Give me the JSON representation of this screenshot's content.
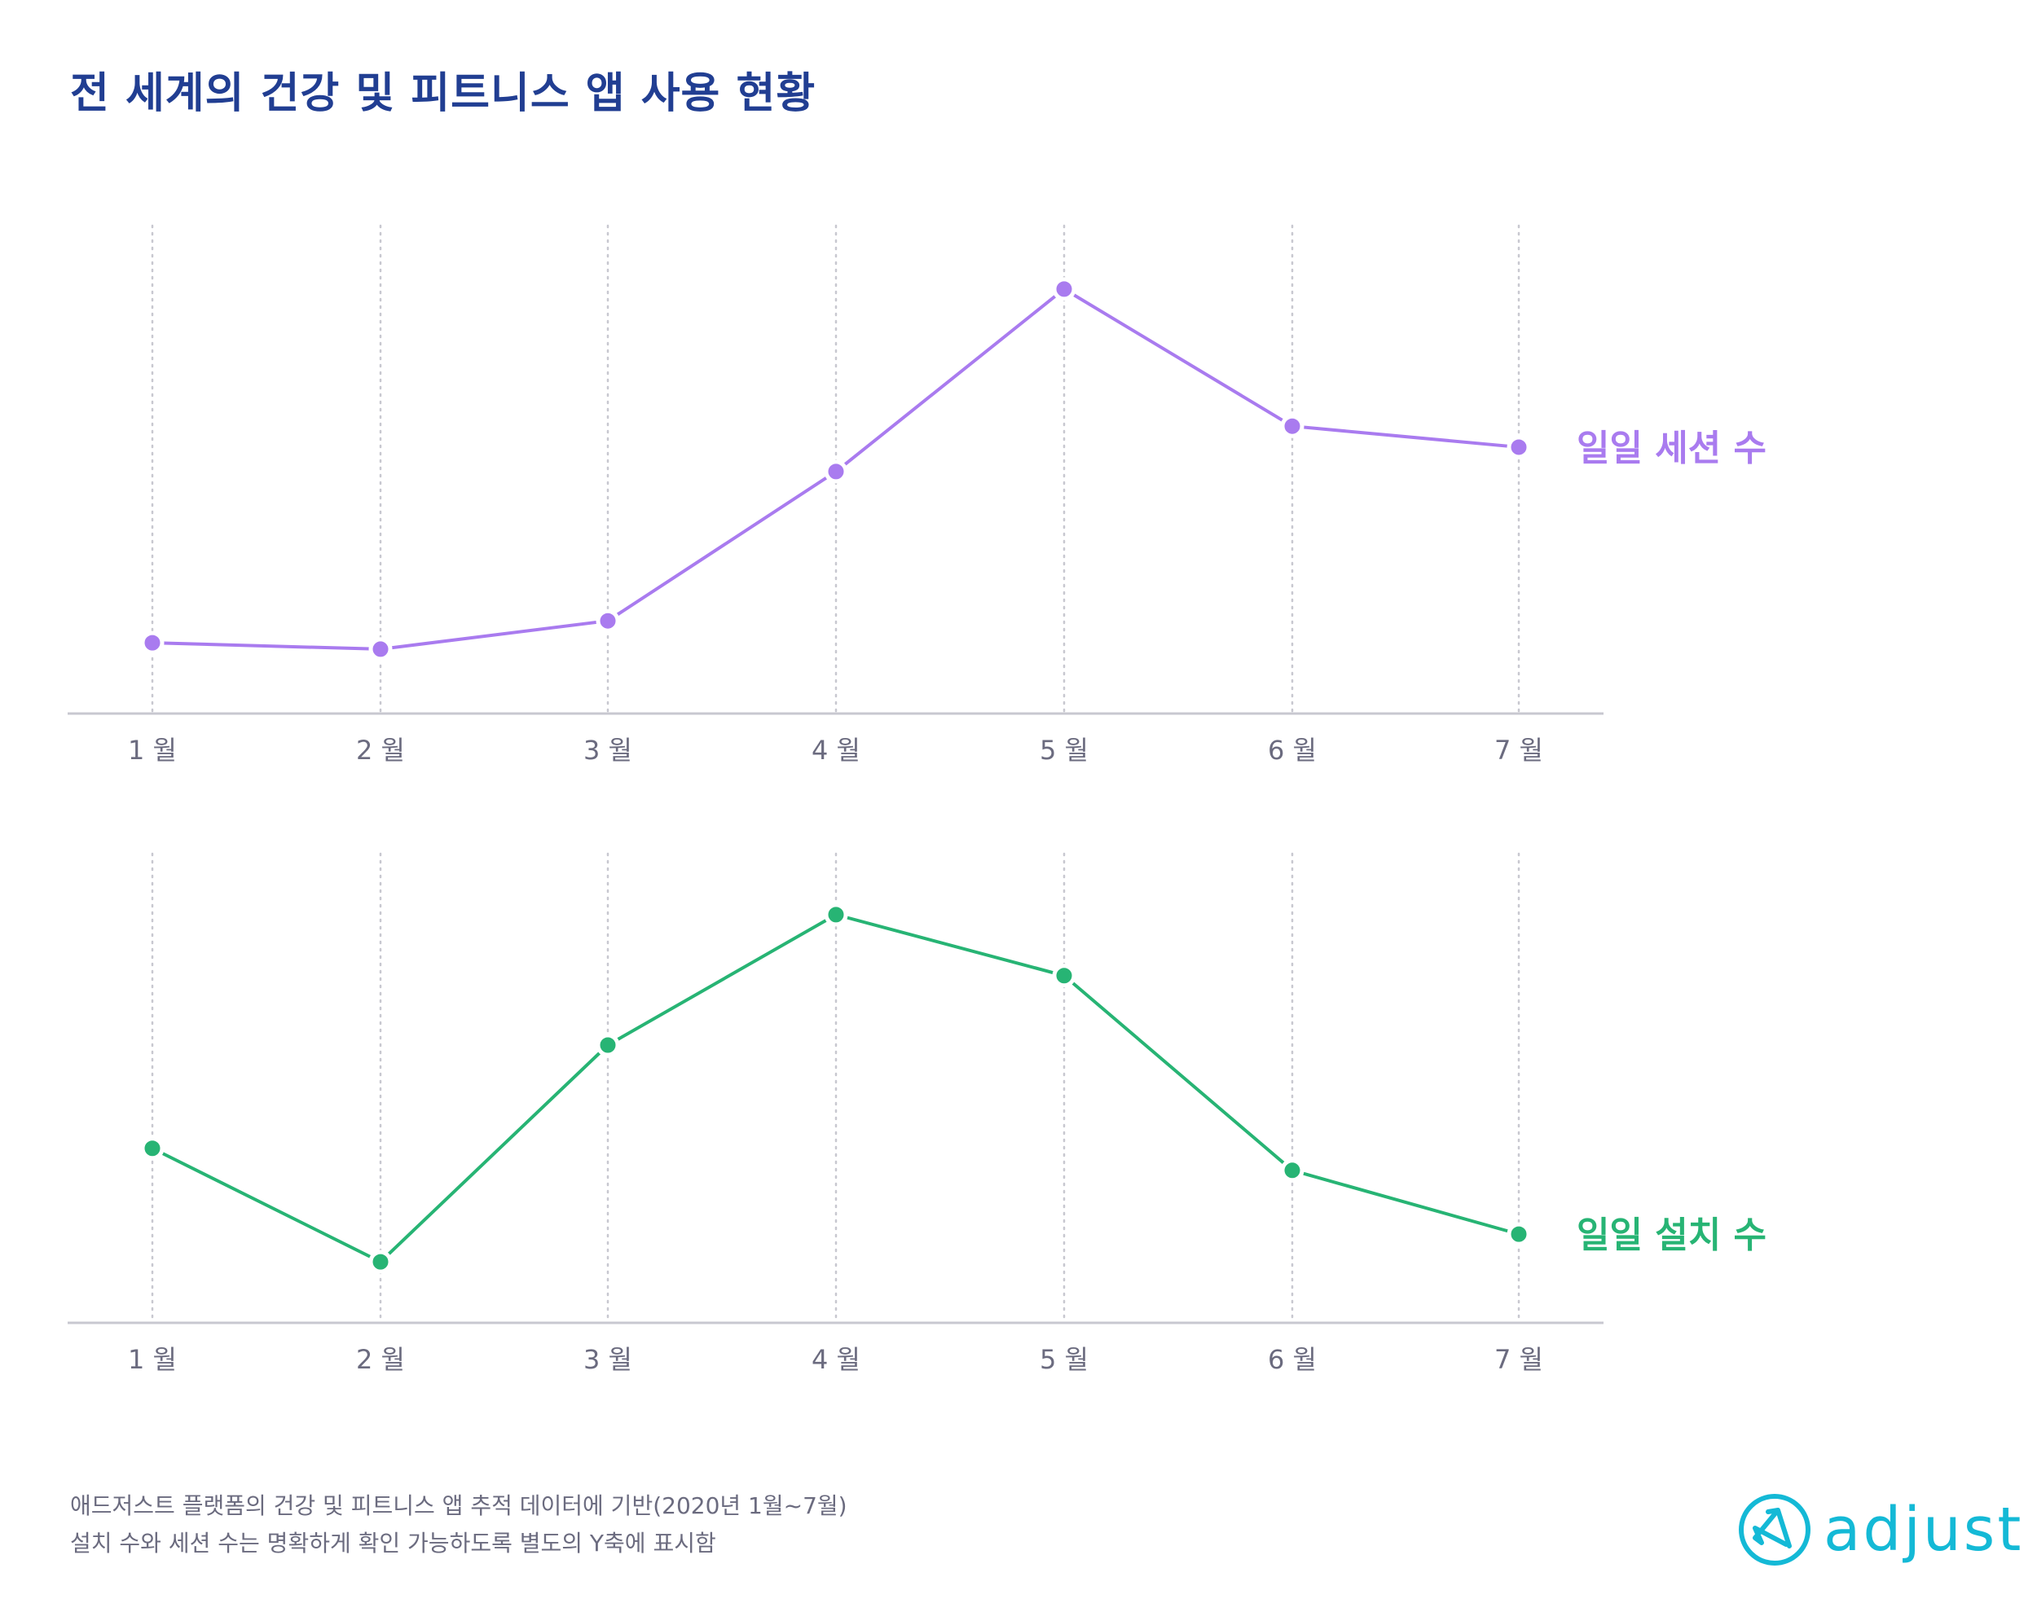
{
  "title": "전 세계의 건강 및 피트니스 앱 사용 현황",
  "colors": {
    "title": "#213E92",
    "sessions": "#A97BEF",
    "installs": "#27B474",
    "grid": "#C8C8D0",
    "axis": "#C8C8D0",
    "tick_text": "#6B6B7F",
    "brand": "#14B9D6"
  },
  "chart_data": [
    {
      "type": "line",
      "title": "",
      "series_label": "일일 세션 수",
      "xlabel": "",
      "ylabel": "",
      "categories": [
        "1 월",
        "2 월",
        "3 월",
        "4 월",
        "5 월",
        "6 월",
        "7 월"
      ],
      "series": [
        {
          "name": "일일 세션 수",
          "values": [
            14.5,
            13.2,
            19.0,
            49.6,
            87.0,
            58.9,
            54.6
          ]
        }
      ],
      "ylim": [
        0,
        100
      ],
      "y_axis_note": "relative scale (no y-axis shown)",
      "grid": "vertical dotted",
      "legend": "right-end label"
    },
    {
      "type": "line",
      "title": "",
      "series_label": "일일 설치 수",
      "xlabel": "",
      "ylabel": "",
      "categories": [
        "1 월",
        "2 월",
        "3 월",
        "4 월",
        "5 월",
        "6 월",
        "7 월"
      ],
      "series": [
        {
          "name": "일일 설치 수",
          "values": [
            37.2,
            13.0,
            59.2,
            87.0,
            74.0,
            32.5,
            18.9
          ]
        }
      ],
      "ylim": [
        0,
        100
      ],
      "y_axis_note": "relative scale (no y-axis shown)",
      "grid": "vertical dotted",
      "legend": "right-end label"
    }
  ],
  "footer": {
    "line1": "애드저스트 플랫폼의 건강 및 피트니스 앱 추적 데이터에 기반(2020년 1월~7월)",
    "line2": "설치 수와 세션 수는 명확하게 확인 가능하도록 별도의 Y축에 표시함"
  },
  "logo": {
    "text": "adjust"
  }
}
